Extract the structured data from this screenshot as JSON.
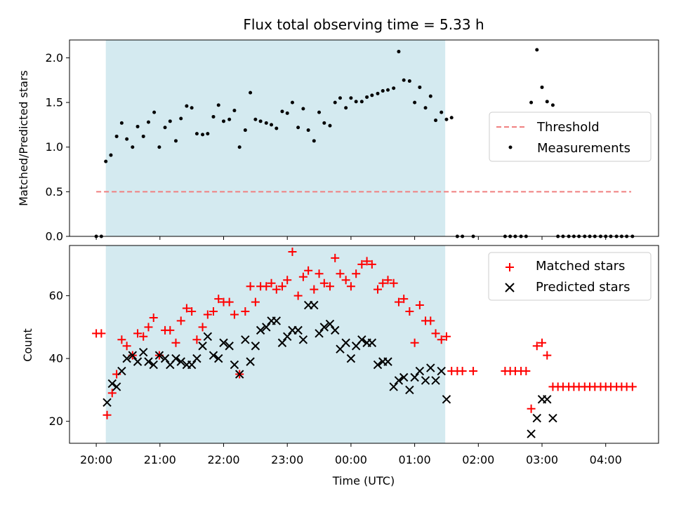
{
  "chart_data": [
    {
      "type": "scatter",
      "panel": "top",
      "title": "Flux total observing time = 5.33 h",
      "ylabel": "Matched/Predicted stars",
      "xlabel": "",
      "ylim": [
        0,
        2.2
      ],
      "yticks": [
        0.0,
        0.5,
        1.0,
        1.5,
        2.0
      ],
      "ytick_labels": [
        "0.0",
        "0.5",
        "1.0",
        "1.5",
        "2.0"
      ],
      "xlim": [
        -0.42,
        8.83
      ],
      "xticks": [
        0,
        1,
        2,
        3,
        4,
        5,
        6,
        7,
        8
      ],
      "shaded_region": [
        0.15,
        5.48
      ],
      "shade_color": "#d4eaf0",
      "legend": {
        "placement": "center-right",
        "entries": [
          "Threshold",
          "Measurements"
        ]
      },
      "series": [
        {
          "name": "Threshold",
          "style": "dashed-line",
          "color": "#f08080",
          "x": [
            0.0,
            8.4
          ],
          "y": [
            0.5,
            0.5
          ]
        },
        {
          "name": "Measurements",
          "style": "dot",
          "color": "#000000",
          "points": [
            [
              0.0,
              0.0
            ],
            [
              0.08,
              0.0
            ],
            [
              0.15,
              0.84
            ],
            [
              0.23,
              0.91
            ],
            [
              0.32,
              1.12
            ],
            [
              0.4,
              1.27
            ],
            [
              0.48,
              1.09
            ],
            [
              0.57,
              1.0
            ],
            [
              0.65,
              1.23
            ],
            [
              0.74,
              1.12
            ],
            [
              0.82,
              1.28
            ],
            [
              0.91,
              1.39
            ],
            [
              0.99,
              1.0
            ],
            [
              1.08,
              1.22
            ],
            [
              1.16,
              1.29
            ],
            [
              1.25,
              1.07
            ],
            [
              1.33,
              1.32
            ],
            [
              1.42,
              1.46
            ],
            [
              1.5,
              1.44
            ],
            [
              1.58,
              1.15
            ],
            [
              1.67,
              1.14
            ],
            [
              1.75,
              1.15
            ],
            [
              1.84,
              1.34
            ],
            [
              1.92,
              1.47
            ],
            [
              2.0,
              1.29
            ],
            [
              2.09,
              1.31
            ],
            [
              2.17,
              1.41
            ],
            [
              2.25,
              1.0
            ],
            [
              2.34,
              1.19
            ],
            [
              2.42,
              1.61
            ],
            [
              2.5,
              1.31
            ],
            [
              2.58,
              1.29
            ],
            [
              2.67,
              1.27
            ],
            [
              2.75,
              1.25
            ],
            [
              2.83,
              1.21
            ],
            [
              2.92,
              1.4
            ],
            [
              3.0,
              1.38
            ],
            [
              3.08,
              1.5
            ],
            [
              3.17,
              1.22
            ],
            [
              3.25,
              1.43
            ],
            [
              3.33,
              1.19
            ],
            [
              3.42,
              1.07
            ],
            [
              3.5,
              1.39
            ],
            [
              3.58,
              1.27
            ],
            [
              3.67,
              1.24
            ],
            [
              3.75,
              1.5
            ],
            [
              3.83,
              1.55
            ],
            [
              3.92,
              1.44
            ],
            [
              4.0,
              1.55
            ],
            [
              4.08,
              1.51
            ],
            [
              4.17,
              1.51
            ],
            [
              4.25,
              1.56
            ],
            [
              4.33,
              1.58
            ],
            [
              4.42,
              1.6
            ],
            [
              4.5,
              1.63
            ],
            [
              4.58,
              1.64
            ],
            [
              4.67,
              1.66
            ],
            [
              4.75,
              2.07
            ],
            [
              4.83,
              1.75
            ],
            [
              4.92,
              1.74
            ],
            [
              5.0,
              1.5
            ],
            [
              5.08,
              1.67
            ],
            [
              5.17,
              1.44
            ],
            [
              5.25,
              1.57
            ],
            [
              5.33,
              1.3
            ],
            [
              5.42,
              1.39
            ],
            [
              5.5,
              1.31
            ],
            [
              5.58,
              1.33
            ],
            [
              5.67,
              0.0
            ],
            [
              5.75,
              0.0
            ],
            [
              5.92,
              0.0
            ],
            [
              6.42,
              0.0
            ],
            [
              6.5,
              0.0
            ],
            [
              6.58,
              0.0
            ],
            [
              6.67,
              0.0
            ],
            [
              6.75,
              0.0
            ],
            [
              6.83,
              1.5
            ],
            [
              6.92,
              2.09
            ],
            [
              7.0,
              1.67
            ],
            [
              7.08,
              1.51
            ],
            [
              7.17,
              1.47
            ],
            [
              7.25,
              0.0
            ],
            [
              7.33,
              0.0
            ],
            [
              7.42,
              0.0
            ],
            [
              7.5,
              0.0
            ],
            [
              7.58,
              0.0
            ],
            [
              7.67,
              0.0
            ],
            [
              7.75,
              0.0
            ],
            [
              7.83,
              0.0
            ],
            [
              7.92,
              0.0
            ],
            [
              8.0,
              0.0
            ],
            [
              8.08,
              0.0
            ],
            [
              8.17,
              0.0
            ],
            [
              8.25,
              0.0
            ],
            [
              8.33,
              0.0
            ],
            [
              8.42,
              0.0
            ]
          ]
        }
      ]
    },
    {
      "type": "scatter",
      "panel": "bottom",
      "title": "",
      "ylabel": "Count",
      "xlabel": "Time (UTC)",
      "ylim": [
        13,
        76
      ],
      "yticks": [
        20,
        40,
        60
      ],
      "ytick_labels": [
        "20",
        "40",
        "60"
      ],
      "xlim": [
        -0.42,
        8.83
      ],
      "xticks": [
        0,
        1,
        2,
        3,
        4,
        5,
        6,
        7,
        8
      ],
      "xtick_labels": [
        "20:00",
        "21:00",
        "22:00",
        "23:00",
        "00:00",
        "01:00",
        "02:00",
        "03:00",
        "04:00"
      ],
      "shaded_region": [
        0.15,
        5.48
      ],
      "shade_color": "#d4eaf0",
      "legend": {
        "placement": "top-right",
        "entries": [
          "Matched stars",
          "Predicted stars"
        ]
      },
      "series": [
        {
          "name": "Matched stars",
          "marker": "plus",
          "color": "#ff0000",
          "points": [
            [
              0.0,
              48
            ],
            [
              0.08,
              48
            ],
            [
              0.17,
              22
            ],
            [
              0.25,
              29
            ],
            [
              0.32,
              35
            ],
            [
              0.4,
              46
            ],
            [
              0.48,
              44
            ],
            [
              0.57,
              41
            ],
            [
              0.65,
              48
            ],
            [
              0.74,
              47
            ],
            [
              0.82,
              50
            ],
            [
              0.9,
              53
            ],
            [
              0.99,
              41
            ],
            [
              1.08,
              49
            ],
            [
              1.16,
              49
            ],
            [
              1.25,
              45
            ],
            [
              1.33,
              52
            ],
            [
              1.42,
              56
            ],
            [
              1.5,
              55
            ],
            [
              1.58,
              46
            ],
            [
              1.67,
              50
            ],
            [
              1.75,
              54
            ],
            [
              1.84,
              55
            ],
            [
              1.92,
              59
            ],
            [
              2.0,
              58
            ],
            [
              2.09,
              58
            ],
            [
              2.17,
              54
            ],
            [
              2.25,
              35
            ],
            [
              2.34,
              55
            ],
            [
              2.42,
              63
            ],
            [
              2.5,
              58
            ],
            [
              2.58,
              63
            ],
            [
              2.67,
              63
            ],
            [
              2.75,
              64
            ],
            [
              2.83,
              62
            ],
            [
              2.92,
              63
            ],
            [
              3.0,
              65
            ],
            [
              3.08,
              74
            ],
            [
              3.17,
              60
            ],
            [
              3.25,
              66
            ],
            [
              3.33,
              68
            ],
            [
              3.42,
              62
            ],
            [
              3.5,
              67
            ],
            [
              3.58,
              64
            ],
            [
              3.67,
              63
            ],
            [
              3.75,
              72
            ],
            [
              3.83,
              67
            ],
            [
              3.92,
              65
            ],
            [
              4.0,
              63
            ],
            [
              4.08,
              67
            ],
            [
              4.17,
              70
            ],
            [
              4.25,
              71
            ],
            [
              4.33,
              70
            ],
            [
              4.42,
              62
            ],
            [
              4.5,
              64
            ],
            [
              4.58,
              65
            ],
            [
              4.67,
              64
            ],
            [
              4.75,
              58
            ],
            [
              4.83,
              59
            ],
            [
              4.92,
              55
            ],
            [
              5.0,
              45
            ],
            [
              5.08,
              57
            ],
            [
              5.17,
              52
            ],
            [
              5.25,
              52
            ],
            [
              5.33,
              48
            ],
            [
              5.42,
              46
            ],
            [
              5.5,
              47
            ],
            [
              5.58,
              36
            ],
            [
              5.67,
              36
            ],
            [
              5.75,
              36
            ],
            [
              5.92,
              36
            ],
            [
              6.42,
              36
            ],
            [
              6.5,
              36
            ],
            [
              6.58,
              36
            ],
            [
              6.67,
              36
            ],
            [
              6.75,
              36
            ],
            [
              6.83,
              24
            ],
            [
              6.92,
              44
            ],
            [
              7.0,
              45
            ],
            [
              7.08,
              41
            ],
            [
              7.17,
              31
            ],
            [
              7.25,
              31
            ],
            [
              7.33,
              31
            ],
            [
              7.42,
              31
            ],
            [
              7.5,
              31
            ],
            [
              7.58,
              31
            ],
            [
              7.67,
              31
            ],
            [
              7.75,
              31
            ],
            [
              7.83,
              31
            ],
            [
              7.92,
              31
            ],
            [
              8.0,
              31
            ],
            [
              8.08,
              31
            ],
            [
              8.17,
              31
            ],
            [
              8.25,
              31
            ],
            [
              8.33,
              31
            ],
            [
              8.42,
              31
            ]
          ]
        },
        {
          "name": "Predicted stars",
          "marker": "x",
          "color": "#000000",
          "points": [
            [
              0.17,
              26
            ],
            [
              0.25,
              32
            ],
            [
              0.32,
              31
            ],
            [
              0.4,
              36
            ],
            [
              0.48,
              40
            ],
            [
              0.57,
              41
            ],
            [
              0.65,
              39
            ],
            [
              0.74,
              42
            ],
            [
              0.82,
              39
            ],
            [
              0.9,
              38
            ],
            [
              0.99,
              41
            ],
            [
              1.08,
              40
            ],
            [
              1.16,
              38
            ],
            [
              1.25,
              40
            ],
            [
              1.33,
              39
            ],
            [
              1.42,
              38
            ],
            [
              1.5,
              38
            ],
            [
              1.58,
              40
            ],
            [
              1.67,
              44
            ],
            [
              1.75,
              47
            ],
            [
              1.84,
              41
            ],
            [
              1.92,
              40
            ],
            [
              2.0,
              45
            ],
            [
              2.09,
              44
            ],
            [
              2.17,
              38
            ],
            [
              2.25,
              35
            ],
            [
              2.34,
              46
            ],
            [
              2.42,
              39
            ],
            [
              2.5,
              44
            ],
            [
              2.58,
              49
            ],
            [
              2.67,
              50
            ],
            [
              2.75,
              52
            ],
            [
              2.83,
              52
            ],
            [
              2.92,
              45
            ],
            [
              3.0,
              47
            ],
            [
              3.08,
              49
            ],
            [
              3.17,
              49
            ],
            [
              3.25,
              46
            ],
            [
              3.33,
              57
            ],
            [
              3.42,
              57
            ],
            [
              3.5,
              48
            ],
            [
              3.58,
              50
            ],
            [
              3.67,
              51
            ],
            [
              3.75,
              49
            ],
            [
              3.83,
              43
            ],
            [
              3.92,
              45
            ],
            [
              4.0,
              40
            ],
            [
              4.08,
              44
            ],
            [
              4.17,
              46
            ],
            [
              4.25,
              45
            ],
            [
              4.33,
              45
            ],
            [
              4.42,
              38
            ],
            [
              4.5,
              39
            ],
            [
              4.58,
              39
            ],
            [
              4.67,
              31
            ],
            [
              4.75,
              33
            ],
            [
              4.83,
              34
            ],
            [
              4.92,
              30
            ],
            [
              5.0,
              34
            ],
            [
              5.08,
              36
            ],
            [
              5.17,
              33
            ],
            [
              5.25,
              37
            ],
            [
              5.33,
              33
            ],
            [
              5.42,
              36
            ],
            [
              5.5,
              27
            ],
            [
              6.83,
              16
            ],
            [
              6.92,
              21
            ],
            [
              7.0,
              27
            ],
            [
              7.08,
              27
            ],
            [
              7.17,
              21
            ]
          ]
        }
      ]
    }
  ]
}
